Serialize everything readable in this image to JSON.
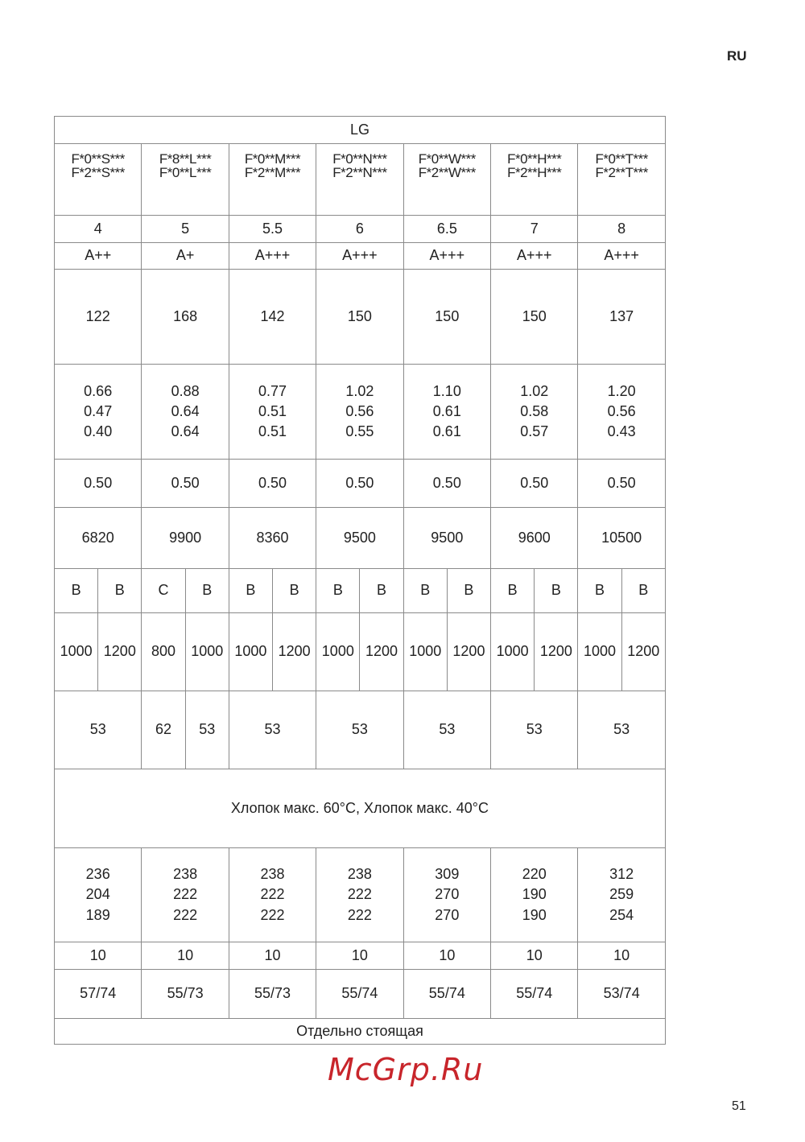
{
  "page": {
    "lang": "RU",
    "page_number": "51"
  },
  "watermark": "McGrp.Ru",
  "table": {
    "rows": [
      {
        "cells": [
          {
            "span": 14,
            "text": "LG"
          }
        ]
      },
      {
        "model": true,
        "cells": [
          {
            "span": 2,
            "text": "F*0**S***\nF*2**S***"
          },
          {
            "span": 2,
            "text": "F*8**L***\nF*0**L***"
          },
          {
            "span": 2,
            "text": "F*0**M***\nF*2**M***"
          },
          {
            "span": 2,
            "text": "F*0**N***\nF*2**N***"
          },
          {
            "span": 2,
            "text": "F*0**W***\nF*2**W***"
          },
          {
            "span": 2,
            "text": "F*0**H***\nF*2**H***"
          },
          {
            "span": 2,
            "text": "F*0**T***\nF*2**T***"
          }
        ]
      },
      {
        "cells": [
          {
            "span": 2,
            "text": "4"
          },
          {
            "span": 2,
            "text": "5"
          },
          {
            "span": 2,
            "text": "5.5"
          },
          {
            "span": 2,
            "text": "6"
          },
          {
            "span": 2,
            "text": "6.5"
          },
          {
            "span": 2,
            "text": "7"
          },
          {
            "span": 2,
            "text": "8"
          }
        ]
      },
      {
        "cells": [
          {
            "span": 2,
            "text": "A++"
          },
          {
            "span": 2,
            "text": "A+"
          },
          {
            "span": 2,
            "text": "A+++"
          },
          {
            "span": 2,
            "text": "A+++"
          },
          {
            "span": 2,
            "text": "A+++"
          },
          {
            "span": 2,
            "text": "A+++"
          },
          {
            "span": 2,
            "text": "A+++"
          }
        ]
      },
      {
        "cells": [
          {
            "span": 2,
            "text": "122"
          },
          {
            "span": 2,
            "text": "168"
          },
          {
            "span": 2,
            "text": "142"
          },
          {
            "span": 2,
            "text": "150"
          },
          {
            "span": 2,
            "text": "150"
          },
          {
            "span": 2,
            "text": "150"
          },
          {
            "span": 2,
            "text": "137"
          }
        ]
      },
      {
        "cells": [
          {
            "span": 2,
            "text": "0.66\n0.47\n0.40"
          },
          {
            "span": 2,
            "text": "0.88\n0.64\n0.64"
          },
          {
            "span": 2,
            "text": "0.77\n0.51\n0.51"
          },
          {
            "span": 2,
            "text": "1.02\n0.56\n0.55"
          },
          {
            "span": 2,
            "text": "1.10\n0.61\n0.61"
          },
          {
            "span": 2,
            "text": "1.02\n0.58\n0.57"
          },
          {
            "span": 2,
            "text": "1.20\n0.56\n0.43"
          }
        ]
      },
      {
        "cells": [
          {
            "span": 2,
            "text": "0.50"
          },
          {
            "span": 2,
            "text": "0.50"
          },
          {
            "span": 2,
            "text": "0.50"
          },
          {
            "span": 2,
            "text": "0.50"
          },
          {
            "span": 2,
            "text": "0.50"
          },
          {
            "span": 2,
            "text": "0.50"
          },
          {
            "span": 2,
            "text": "0.50"
          }
        ]
      },
      {
        "cells": [
          {
            "span": 2,
            "text": "6820"
          },
          {
            "span": 2,
            "text": "9900"
          },
          {
            "span": 2,
            "text": "8360"
          },
          {
            "span": 2,
            "text": "9500"
          },
          {
            "span": 2,
            "text": "9500"
          },
          {
            "span": 2,
            "text": "9600"
          },
          {
            "span": 2,
            "text": "10500"
          }
        ]
      },
      {
        "cells": [
          {
            "span": 1,
            "text": "B"
          },
          {
            "span": 1,
            "text": "B"
          },
          {
            "span": 1,
            "text": "C"
          },
          {
            "span": 1,
            "text": "B"
          },
          {
            "span": 1,
            "text": "B"
          },
          {
            "span": 1,
            "text": "B"
          },
          {
            "span": 1,
            "text": "B"
          },
          {
            "span": 1,
            "text": "B"
          },
          {
            "span": 1,
            "text": "B"
          },
          {
            "span": 1,
            "text": "B"
          },
          {
            "span": 1,
            "text": "B"
          },
          {
            "span": 1,
            "text": "B"
          },
          {
            "span": 1,
            "text": "B"
          },
          {
            "span": 1,
            "text": "B"
          }
        ]
      },
      {
        "cells": [
          {
            "span": 1,
            "text": "1000"
          },
          {
            "span": 1,
            "text": "1200"
          },
          {
            "span": 1,
            "text": "800"
          },
          {
            "span": 1,
            "text": "1000"
          },
          {
            "span": 1,
            "text": "1000"
          },
          {
            "span": 1,
            "text": "1200"
          },
          {
            "span": 1,
            "text": "1000"
          },
          {
            "span": 1,
            "text": "1200"
          },
          {
            "span": 1,
            "text": "1000"
          },
          {
            "span": 1,
            "text": "1200"
          },
          {
            "span": 1,
            "text": "1000"
          },
          {
            "span": 1,
            "text": "1200"
          },
          {
            "span": 1,
            "text": "1000"
          },
          {
            "span": 1,
            "text": "1200"
          }
        ]
      },
      {
        "cells": [
          {
            "span": 2,
            "text": "53"
          },
          {
            "span": 1,
            "text": "62"
          },
          {
            "span": 1,
            "text": "53"
          },
          {
            "span": 2,
            "text": "53"
          },
          {
            "span": 2,
            "text": "53"
          },
          {
            "span": 2,
            "text": "53"
          },
          {
            "span": 2,
            "text": "53"
          },
          {
            "span": 2,
            "text": "53"
          }
        ]
      },
      {
        "cells": [
          {
            "span": 14,
            "text": "Хлопок макс. 60°C, Хлопок макс. 40°C"
          }
        ]
      },
      {
        "cells": [
          {
            "span": 2,
            "text": "236\n204\n189"
          },
          {
            "span": 2,
            "text": "238\n222\n222"
          },
          {
            "span": 2,
            "text": "238\n222\n222"
          },
          {
            "span": 2,
            "text": "238\n222\n222"
          },
          {
            "span": 2,
            "text": "309\n270\n270"
          },
          {
            "span": 2,
            "text": "220\n190\n190"
          },
          {
            "span": 2,
            "text": "312\n259\n254"
          }
        ]
      },
      {
        "cells": [
          {
            "span": 2,
            "text": "10"
          },
          {
            "span": 2,
            "text": "10"
          },
          {
            "span": 2,
            "text": "10"
          },
          {
            "span": 2,
            "text": "10"
          },
          {
            "span": 2,
            "text": "10"
          },
          {
            "span": 2,
            "text": "10"
          },
          {
            "span": 2,
            "text": "10"
          }
        ]
      },
      {
        "cells": [
          {
            "span": 2,
            "text": "57/74"
          },
          {
            "span": 2,
            "text": "55/73"
          },
          {
            "span": 2,
            "text": "55/73"
          },
          {
            "span": 2,
            "text": "55/74"
          },
          {
            "span": 2,
            "text": "55/74"
          },
          {
            "span": 2,
            "text": "55/74"
          },
          {
            "span": 2,
            "text": "53/74"
          }
        ]
      },
      {
        "cells": [
          {
            "span": 14,
            "text": "Отдельно стоящая"
          }
        ]
      }
    ]
  }
}
